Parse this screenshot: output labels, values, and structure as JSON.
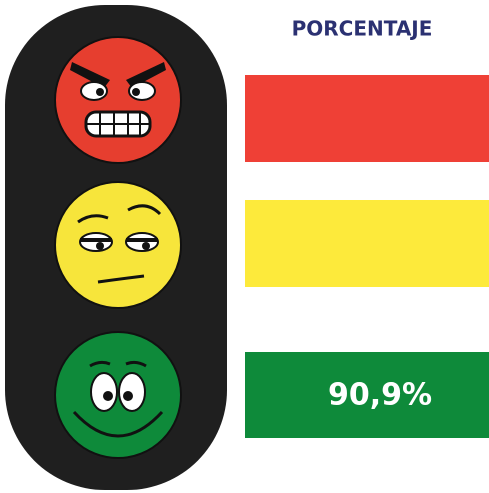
{
  "header": {
    "title": "PORCENTAJE"
  },
  "levels": {
    "green": {
      "label": "90,9%"
    }
  }
}
